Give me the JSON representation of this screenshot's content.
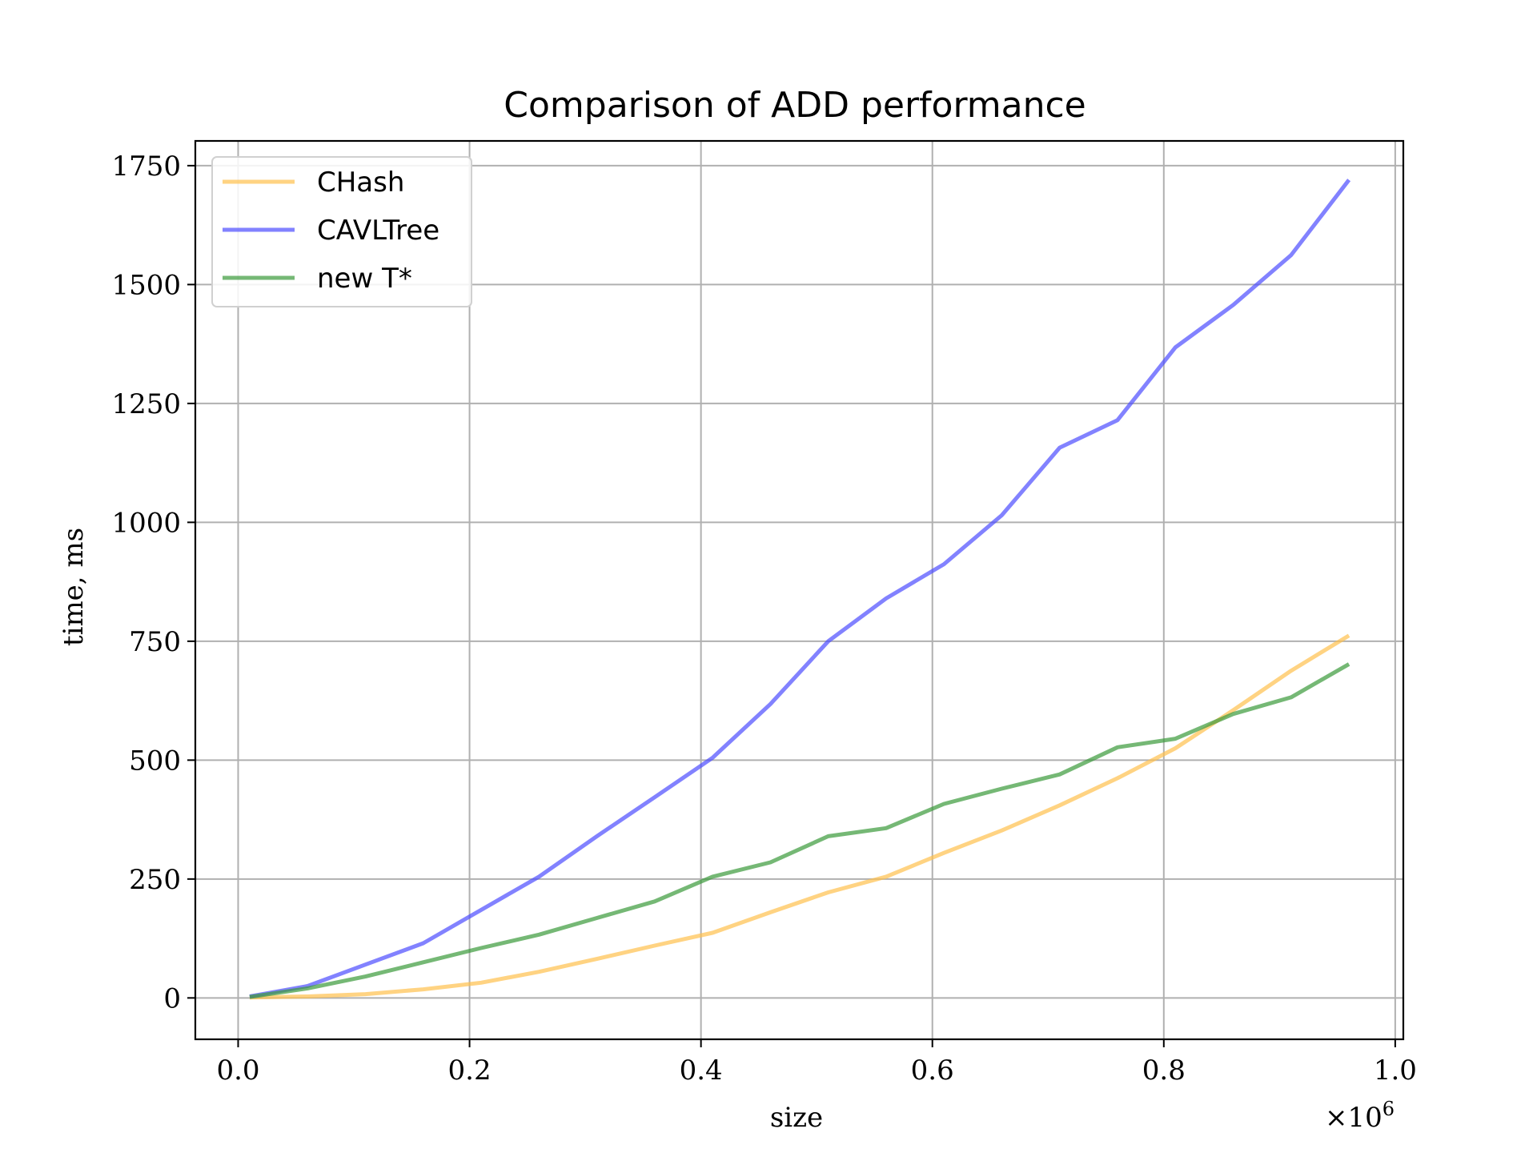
{
  "chart_data": {
    "type": "line",
    "title": "Comparison of ADD performance",
    "xlabel": "size",
    "ylabel": "time, ms",
    "x_multiplier_label": "×10",
    "x_multiplier_exponent": "6",
    "xlim": [
      -0.037,
      1.007
    ],
    "ylim": [
      -87,
      1802
    ],
    "x_ticks": [
      0.0,
      0.2,
      0.4,
      0.6,
      0.8,
      1.0
    ],
    "x_tick_labels": [
      "0.0",
      "0.2",
      "0.4",
      "0.6",
      "0.8",
      "1.0"
    ],
    "y_ticks": [
      0,
      250,
      500,
      750,
      1000,
      1250,
      1500,
      1750
    ],
    "y_tick_labels": [
      "0",
      "250",
      "500",
      "750",
      "1000",
      "1250",
      "1500",
      "1750"
    ],
    "grid": true,
    "legend_position": "top-left",
    "x": [
      0.01,
      0.06,
      0.11,
      0.16,
      0.21,
      0.26,
      0.31,
      0.36,
      0.41,
      0.46,
      0.51,
      0.56,
      0.61,
      0.66,
      0.71,
      0.76,
      0.81,
      0.86,
      0.91,
      0.96
    ],
    "series": [
      {
        "name": "CHash",
        "color": "#ffc04d",
        "values": [
          1,
          3,
          8,
          18,
          32,
          55,
          82,
          110,
          137,
          180,
          222,
          255,
          305,
          352,
          405,
          462,
          525,
          605,
          688,
          762
        ]
      },
      {
        "name": "CAVLTree",
        "color": "#4d4dff",
        "values": [
          3,
          25,
          70,
          115,
          185,
          255,
          340,
          422,
          505,
          618,
          750,
          840,
          912,
          1015,
          1157,
          1215,
          1368,
          1457,
          1562,
          1720
        ]
      },
      {
        "name": "new T*",
        "color": "#3a9a3a",
        "values": [
          2,
          20,
          45,
          75,
          105,
          133,
          168,
          203,
          255,
          285,
          340,
          357,
          408,
          440,
          470,
          527,
          545,
          597,
          632,
          702
        ]
      }
    ]
  }
}
